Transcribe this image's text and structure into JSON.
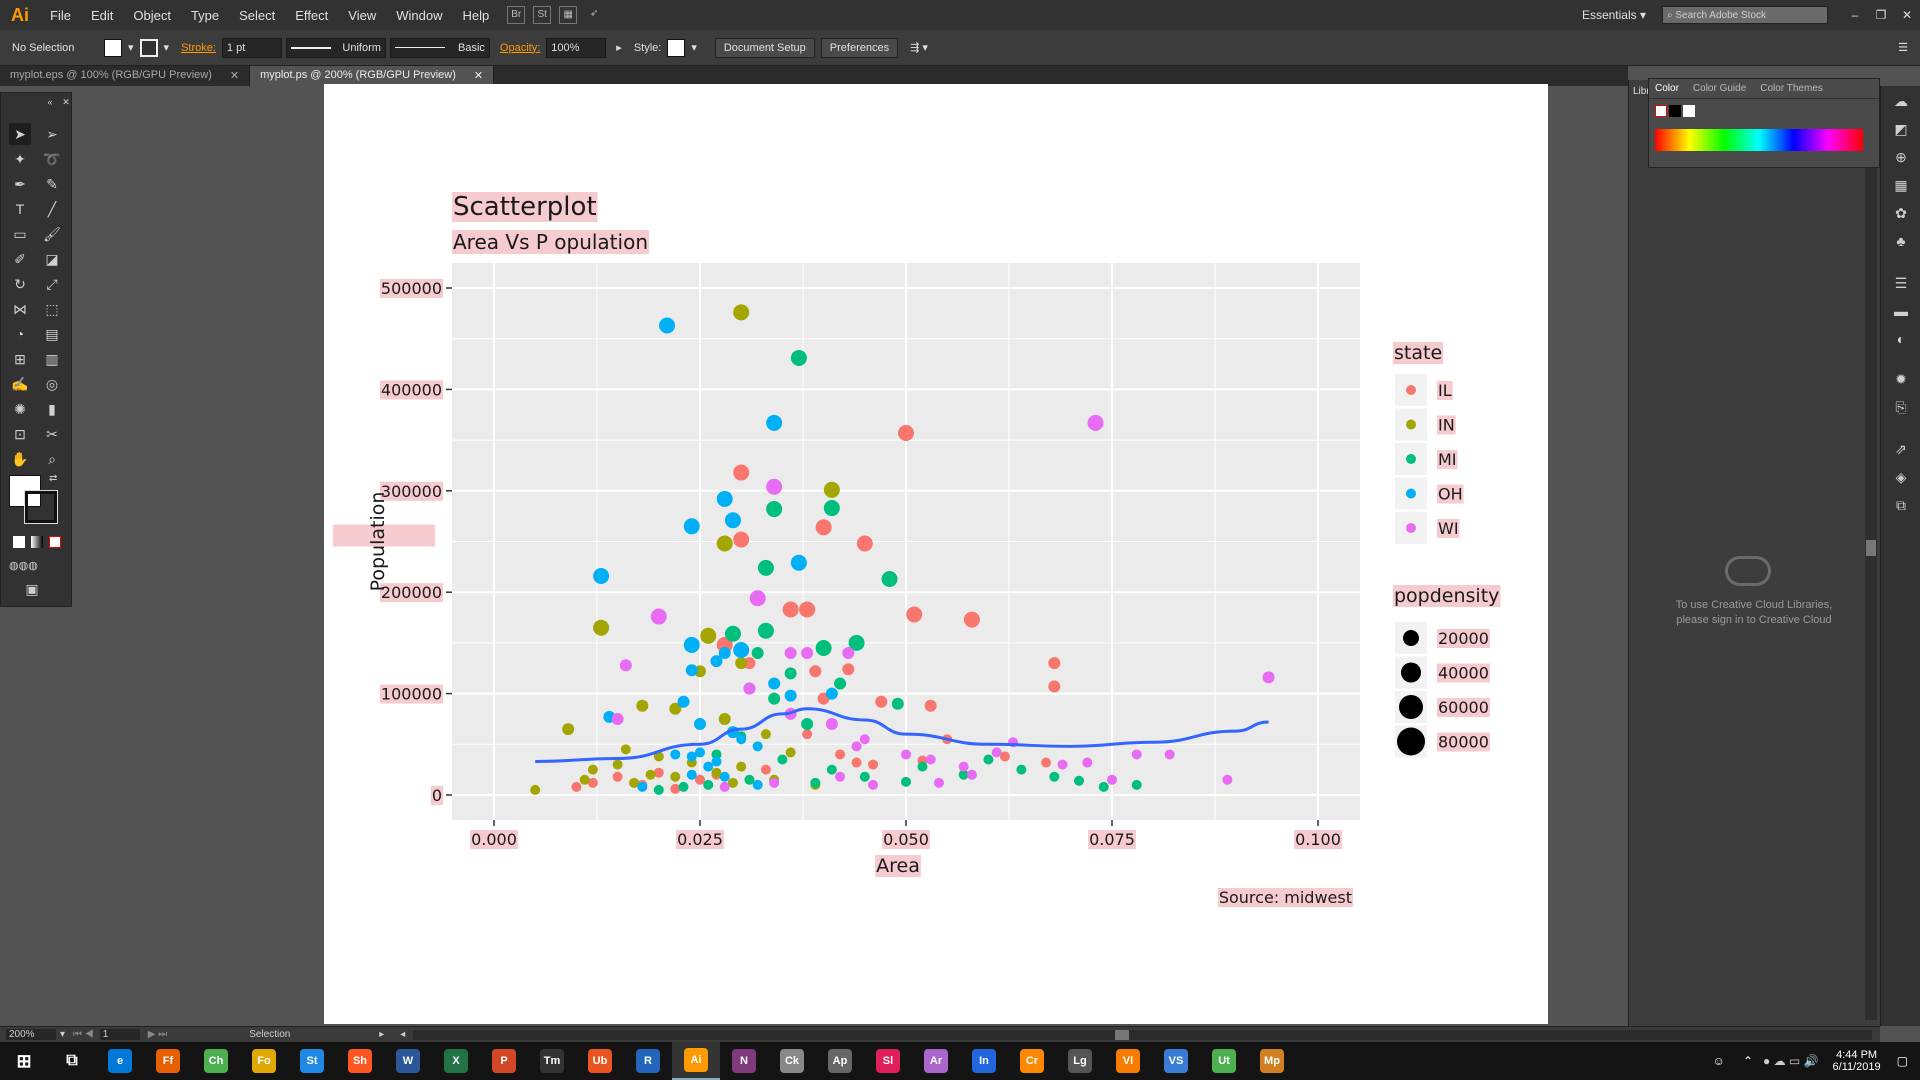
{
  "app": {
    "logo": "Ai",
    "menus": [
      "File",
      "Edit",
      "Object",
      "Type",
      "Select",
      "Effect",
      "View",
      "Window",
      "Help"
    ],
    "workspace": "Essentials",
    "search_placeholder": "Search Adobe Stock"
  },
  "control": {
    "selection": "No Selection",
    "stroke_label": "Stroke:",
    "stroke_value": "1 pt",
    "profile": "Uniform",
    "brush": "Basic",
    "opacity_label": "Opacity:",
    "opacity_value": "100%",
    "style_label": "Style:",
    "document_setup": "Document Setup",
    "preferences": "Preferences"
  },
  "tabs": [
    {
      "label": "myplot.eps @ 100% (RGB/GPU Preview)",
      "active": false
    },
    {
      "label": "myplot.ps @ 200% (RGB/GPU Preview)",
      "active": true
    }
  ],
  "panels": {
    "libraries_short": "Libr",
    "color_tabs": [
      "Color",
      "Color Guide",
      "Color Themes"
    ],
    "cc_message": "To use Creative Cloud Libraries, please sign in to Creative Cloud"
  },
  "status": {
    "zoom": "200%",
    "artboard": "1",
    "tool": "Selection"
  },
  "taskbar": {
    "time": "4:44 PM",
    "date": "6/11/2019",
    "apps": [
      "e",
      "Ff",
      "Ch",
      "Fo",
      "St",
      "Sh",
      "W",
      "X",
      "P",
      "Tm",
      "Ub",
      "R",
      "Ai",
      "N",
      "Ck",
      "Ap",
      "Sl",
      "Ar",
      "In",
      "Cr",
      "Lg",
      "Vl",
      "VS",
      "Ut",
      "Mp"
    ]
  },
  "colors": {
    "IL": "#F8766D",
    "IN": "#A3A500",
    "MI": "#00BF7D",
    "OH": "#00B0F6",
    "WI": "#E76BF3",
    "smooth": "#3366FF",
    "panel_bg": "#EBEBEB"
  },
  "chart_data": {
    "type": "scatter",
    "title": "Scatterplot",
    "subtitle": "Area Vs P opulation",
    "xlabel": "Area",
    "ylabel": "Population",
    "caption": "Source: midwest",
    "xlim": [
      0,
      0.1
    ],
    "ylim": [
      0,
      500000
    ],
    "x_ticks": [
      "0.000",
      "0.025",
      "0.050",
      "0.075",
      "0.100"
    ],
    "y_ticks": [
      "0",
      "100000",
      "200000",
      "300000",
      "400000",
      "500000"
    ],
    "grid": true,
    "legend_state_title": "state",
    "legend_states": [
      "IL",
      "IN",
      "MI",
      "OH",
      "WI"
    ],
    "legend_size_title": "popdensity",
    "legend_sizes": [
      "20000",
      "40000",
      "60000",
      "80000"
    ],
    "smooth_line": [
      [
        0.005,
        33000
      ],
      [
        0.015,
        36000
      ],
      [
        0.025,
        50000
      ],
      [
        0.03,
        65000
      ],
      [
        0.035,
        80000
      ],
      [
        0.038,
        85000
      ],
      [
        0.045,
        74000
      ],
      [
        0.05,
        60000
      ],
      [
        0.06,
        50000
      ],
      [
        0.07,
        48000
      ],
      [
        0.08,
        52000
      ],
      [
        0.09,
        63000
      ],
      [
        0.094,
        72000
      ]
    ],
    "series": [
      {
        "name": "IL",
        "points": [
          [
            0.03,
            318000
          ],
          [
            0.03,
            252000
          ],
          [
            0.04,
            264000
          ],
          [
            0.045,
            248000
          ],
          [
            0.036,
            183000
          ],
          [
            0.038,
            183000
          ],
          [
            0.05,
            357000
          ],
          [
            0.051,
            178000
          ],
          [
            0.058,
            173000
          ],
          [
            0.068,
            130000
          ],
          [
            0.068,
            107000
          ],
          [
            0.028,
            148000
          ],
          [
            0.031,
            130000
          ],
          [
            0.039,
            122000
          ],
          [
            0.043,
            124000
          ],
          [
            0.04,
            95000
          ],
          [
            0.047,
            92000
          ],
          [
            0.053,
            88000
          ],
          [
            0.038,
            60000
          ],
          [
            0.042,
            40000
          ],
          [
            0.046,
            30000
          ],
          [
            0.055,
            55000
          ],
          [
            0.062,
            38000
          ],
          [
            0.067,
            32000
          ],
          [
            0.02,
            22000
          ],
          [
            0.025,
            15000
          ],
          [
            0.015,
            18000
          ],
          [
            0.012,
            12000
          ],
          [
            0.01,
            8000
          ],
          [
            0.018,
            10000
          ],
          [
            0.022,
            6000
          ],
          [
            0.027,
            20000
          ],
          [
            0.033,
            25000
          ],
          [
            0.044,
            32000
          ],
          [
            0.052,
            34000
          ]
        ]
      },
      {
        "name": "IN",
        "points": [
          [
            0.03,
            476000
          ],
          [
            0.041,
            301000
          ],
          [
            0.028,
            248000
          ],
          [
            0.013,
            165000
          ],
          [
            0.026,
            157000
          ],
          [
            0.03,
            130000
          ],
          [
            0.025,
            122000
          ],
          [
            0.018,
            88000
          ],
          [
            0.022,
            85000
          ],
          [
            0.028,
            75000
          ],
          [
            0.033,
            60000
          ],
          [
            0.009,
            65000
          ],
          [
            0.016,
            45000
          ],
          [
            0.02,
            38000
          ],
          [
            0.024,
            32000
          ],
          [
            0.03,
            28000
          ],
          [
            0.036,
            42000
          ],
          [
            0.005,
            5000
          ],
          [
            0.012,
            25000
          ],
          [
            0.015,
            30000
          ],
          [
            0.019,
            20000
          ],
          [
            0.022,
            18000
          ],
          [
            0.027,
            22000
          ],
          [
            0.029,
            12000
          ],
          [
            0.034,
            15000
          ],
          [
            0.039,
            10000
          ],
          [
            0.011,
            15000
          ],
          [
            0.017,
            12000
          ]
        ]
      },
      {
        "name": "MI",
        "points": [
          [
            0.037,
            431000
          ],
          [
            0.034,
            282000
          ],
          [
            0.041,
            283000
          ],
          [
            0.033,
            224000
          ],
          [
            0.048,
            213000
          ],
          [
            0.029,
            159000
          ],
          [
            0.033,
            162000
          ],
          [
            0.04,
            145000
          ],
          [
            0.044,
            150000
          ],
          [
            0.032,
            140000
          ],
          [
            0.036,
            120000
          ],
          [
            0.042,
            110000
          ],
          [
            0.049,
            90000
          ],
          [
            0.034,
            95000
          ],
          [
            0.038,
            70000
          ],
          [
            0.03,
            58000
          ],
          [
            0.027,
            40000
          ],
          [
            0.035,
            35000
          ],
          [
            0.041,
            25000
          ],
          [
            0.052,
            28000
          ],
          [
            0.057,
            20000
          ],
          [
            0.064,
            25000
          ],
          [
            0.068,
            18000
          ],
          [
            0.071,
            14000
          ],
          [
            0.078,
            10000
          ],
          [
            0.074,
            8000
          ],
          [
            0.06,
            35000
          ],
          [
            0.031,
            15000
          ],
          [
            0.039,
            12000
          ],
          [
            0.023,
            8000
          ],
          [
            0.02,
            5000
          ],
          [
            0.026,
            10000
          ],
          [
            0.045,
            18000
          ],
          [
            0.05,
            13000
          ]
        ]
      },
      {
        "name": "OH",
        "points": [
          [
            0.021,
            463000
          ],
          [
            0.034,
            367000
          ],
          [
            0.028,
            292000
          ],
          [
            0.029,
            271000
          ],
          [
            0.024,
            265000
          ],
          [
            0.037,
            229000
          ],
          [
            0.013,
            216000
          ],
          [
            0.024,
            148000
          ],
          [
            0.028,
            140000
          ],
          [
            0.03,
            143000
          ],
          [
            0.027,
            132000
          ],
          [
            0.031,
            105000
          ],
          [
            0.024,
            123000
          ],
          [
            0.034,
            110000
          ],
          [
            0.036,
            98000
          ],
          [
            0.041,
            100000
          ],
          [
            0.014,
            77000
          ],
          [
            0.023,
            92000
          ],
          [
            0.025,
            70000
          ],
          [
            0.029,
            62000
          ],
          [
            0.03,
            55000
          ],
          [
            0.032,
            48000
          ],
          [
            0.025,
            42000
          ],
          [
            0.024,
            38000
          ],
          [
            0.027,
            33000
          ],
          [
            0.026,
            28000
          ],
          [
            0.022,
            40000
          ],
          [
            0.024,
            20000
          ],
          [
            0.028,
            18000
          ],
          [
            0.032,
            10000
          ],
          [
            0.018,
            8000
          ]
        ]
      },
      {
        "name": "WI",
        "points": [
          [
            0.073,
            367000
          ],
          [
            0.034,
            304000
          ],
          [
            0.032,
            194000
          ],
          [
            0.02,
            176000
          ],
          [
            0.016,
            128000
          ],
          [
            0.038,
            140000
          ],
          [
            0.036,
            140000
          ],
          [
            0.043,
            140000
          ],
          [
            0.015,
            75000
          ],
          [
            0.094,
            116000
          ],
          [
            0.031,
            105000
          ],
          [
            0.036,
            80000
          ],
          [
            0.041,
            70000
          ],
          [
            0.045,
            55000
          ],
          [
            0.05,
            40000
          ],
          [
            0.053,
            35000
          ],
          [
            0.057,
            28000
          ],
          [
            0.061,
            42000
          ],
          [
            0.069,
            30000
          ],
          [
            0.072,
            32000
          ],
          [
            0.078,
            40000
          ],
          [
            0.082,
            40000
          ],
          [
            0.089,
            15000
          ],
          [
            0.075,
            15000
          ],
          [
            0.063,
            52000
          ],
          [
            0.042,
            18000
          ],
          [
            0.046,
            10000
          ],
          [
            0.054,
            12000
          ],
          [
            0.034,
            12000
          ],
          [
            0.028,
            8000
          ],
          [
            0.058,
            20000
          ],
          [
            0.044,
            48000
          ]
        ]
      }
    ]
  }
}
